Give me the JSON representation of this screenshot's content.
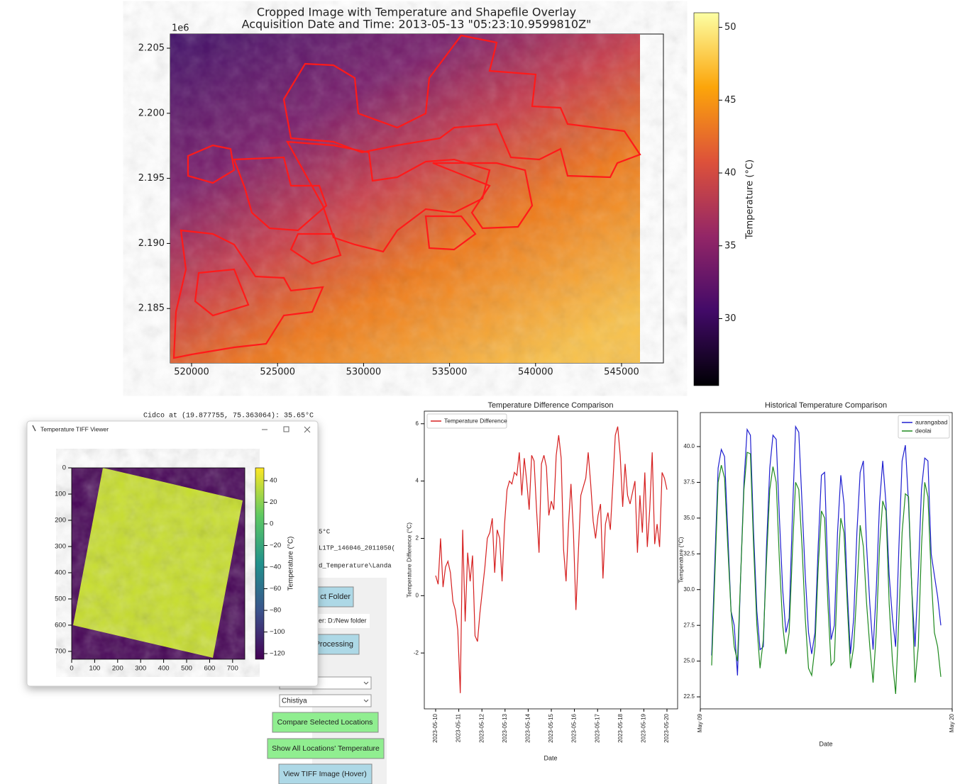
{
  "map_plot": {
    "title": [
      "Cropped Image with Temperature and Shapefile Overlay",
      "Acquisition Date and Time: 2013-05-13 \"05:23:10.9599810Z\""
    ],
    "y_offset": "1e6",
    "xlim": [
      518762,
      547434
    ],
    "xticks": [
      520000,
      525000,
      530000,
      535000,
      540000,
      545000
    ],
    "ylim": [
      2.18082,
      2.20609
    ],
    "yticks": [
      {
        "value": 2.185,
        "label": "2.185"
      },
      {
        "value": 2.19,
        "label": "2.190"
      },
      2.195,
      {
        "value": 2.2,
        "label": "2.200"
      },
      2.205
    ],
    "colorbar": {
      "label": "Temperature (°C)",
      "lim": [
        25.4,
        51.0
      ],
      "ticks": [
        30,
        35,
        40,
        45,
        50
      ]
    }
  },
  "tiff_viewer": {
    "window_title": "Temperature TIFF Viewer",
    "xlim": [
      0,
      753
    ],
    "xticks": [
      0,
      100,
      200,
      300,
      400,
      500,
      600,
      700
    ],
    "ylim": [
      0,
      730
    ],
    "yticks": [
      0,
      100,
      200,
      300,
      400,
      500,
      600,
      700
    ],
    "colorbar": {
      "label": "Temperature (°C)",
      "lim": [
        -125.2,
        51.8
      ],
      "ticks": [
        {
          "value": -120,
          "label": "−120"
        },
        {
          "value": -100,
          "label": "−100"
        },
        {
          "value": -80,
          "label": "−80"
        },
        {
          "value": -60,
          "label": "−60"
        },
        {
          "value": -40,
          "label": "−40"
        },
        {
          "value": -20,
          "label": "−20"
        },
        0,
        20,
        40
      ]
    }
  },
  "app": {
    "status_line": "Cidco at (19.877755, 75.363064): 35.65°C",
    "info_lines": [
      "5°C",
      "L1TP_146046_2011050(",
      "d_Temperature\\Landa"
    ],
    "select_folder_button": "ct Folder",
    "folder_label": "der: D:/New folder",
    "processing_button": "Processing",
    "location_dropdown": "Chistiya",
    "buttons": [
      "Compare Selected Locations",
      "Show All Locations' Temperature",
      "View TIFF Image (Hover)"
    ]
  },
  "chart_data": [
    {
      "type": "line",
      "title": "Temperature Difference Comparison",
      "x_label": "Date",
      "y_label": "Temperature Difference (°C)",
      "xticks": [
        "2023-05-10",
        "2023-05-11",
        "2023-05-12",
        "2023-05-13",
        "2023-05-14",
        "2023-05-15",
        "2023-05-16",
        "2023-05-17",
        "2023-05-18",
        "2023-05-19",
        "2023-05-20"
      ],
      "ylim": [
        -3.95,
        6.44
      ],
      "yticks": [
        -2,
        0,
        2,
        4,
        6
      ],
      "legend": "upper left",
      "series": [
        {
          "name": "Temperature Difference",
          "color": "#d62020",
          "values": [
            0.7,
            0.4,
            2.0,
            0.3,
            1.0,
            1.2,
            0.8,
            -0.2,
            -0.5,
            -1.2,
            -3.4,
            2.3,
            -0.9,
            1.5,
            0.5,
            1.4,
            -1.4,
            -1.6,
            -0.6,
            0.2,
            1.0,
            2.0,
            2.2,
            2.7,
            0.8,
            2.3,
            2.0,
            0.5,
            2.5,
            3.7,
            4.0,
            3.9,
            4.3,
            4.2,
            5.0,
            3.5,
            4.8,
            4.0,
            3.0,
            4.9,
            4.7,
            3.0,
            1.5,
            4.6,
            4.9,
            4.5,
            2.8,
            3.3,
            3.0,
            4.9,
            5.6,
            4.8,
            1.6,
            0.5,
            2.5,
            3.9,
            2.2,
            -0.5,
            1.5,
            3.5,
            3.8,
            4.1,
            5.0,
            3.9,
            2.6,
            2.0,
            2.8,
            3.2,
            0.6,
            2.5,
            2.9,
            2.3,
            3.9,
            5.6,
            5.9,
            4.9,
            3.1,
            4.6,
            3.5,
            3.2,
            3.6,
            4.0,
            1.5,
            3.5,
            2.2,
            4.3,
            1.7,
            3.0,
            5.0,
            1.8,
            2.5,
            1.7,
            4.3,
            4.1,
            3.7
          ]
        }
      ]
    },
    {
      "type": "line",
      "title": "Historical Temperature Comparison",
      "x_label": "Date",
      "y_label": "Temperature (°C)",
      "xticks": [
        "May 09",
        "May 20"
      ],
      "ylim": [
        21.66,
        42.38
      ],
      "yticks": [
        22.5,
        {
          "value": 25,
          "label": "25.0"
        },
        27.5,
        {
          "value": 30,
          "label": "30.0"
        },
        32.5,
        {
          "value": 35,
          "label": "35.0"
        },
        37.5,
        {
          "value": 40,
          "label": "40.0"
        }
      ],
      "legend": "upper right",
      "series": [
        {
          "name": "aurangabad",
          "color": "#1f1fd0",
          "values": [
            25.4,
            32.0,
            38.5,
            39.8,
            39.3,
            34.0,
            28.5,
            27.5,
            24.0,
            31.0,
            37.5,
            41.2,
            40.8,
            34.0,
            28.5,
            25.8,
            26.0,
            33.0,
            38.5,
            40.8,
            40.5,
            35.0,
            30.0,
            27.0,
            28.0,
            35.0,
            41.4,
            41.0,
            36.0,
            31.0,
            27.0,
            25.5,
            27.0,
            33.0,
            38.0,
            38.2,
            31.0,
            26.5,
            27.5,
            34.0,
            38.0,
            36.0,
            30.0,
            25.5,
            28.0,
            34.0,
            38.2,
            39.0,
            33.0,
            29.0,
            25.8,
            30.0,
            36.0,
            39.0,
            36.0,
            31.0,
            28.0,
            26.0,
            33.0,
            39.0,
            40.1,
            36.0,
            30.0,
            26.0,
            31.0,
            37.0,
            39.2,
            39.0,
            32.5,
            31.0,
            29.5,
            27.5
          ]
        },
        {
          "name": "deolai",
          "color": "#1f8a1f",
          "values": [
            24.7,
            31.0,
            37.5,
            38.7,
            37.8,
            33.0,
            28.5,
            26.0,
            25.0,
            31.0,
            37.0,
            39.6,
            39.5,
            33.0,
            27.5,
            24.5,
            26.5,
            32.0,
            37.0,
            38.6,
            37.5,
            32.0,
            27.5,
            25.5,
            27.0,
            32.5,
            37.5,
            37.0,
            33.0,
            28.0,
            24.5,
            24.0,
            26.0,
            31.5,
            35.5,
            35.0,
            29.0,
            24.7,
            25.0,
            31.0,
            35.0,
            34.0,
            29.0,
            24.5,
            26.0,
            30.0,
            34.5,
            33.0,
            29.0,
            26.0,
            23.5,
            27.0,
            33.0,
            36.2,
            35.5,
            29.0,
            25.0,
            22.7,
            28.0,
            34.0,
            36.7,
            36.5,
            30.0,
            23.5,
            26.0,
            33.0,
            37.5,
            36.5,
            31.0,
            27.0,
            26.0,
            23.9
          ]
        }
      ]
    }
  ]
}
